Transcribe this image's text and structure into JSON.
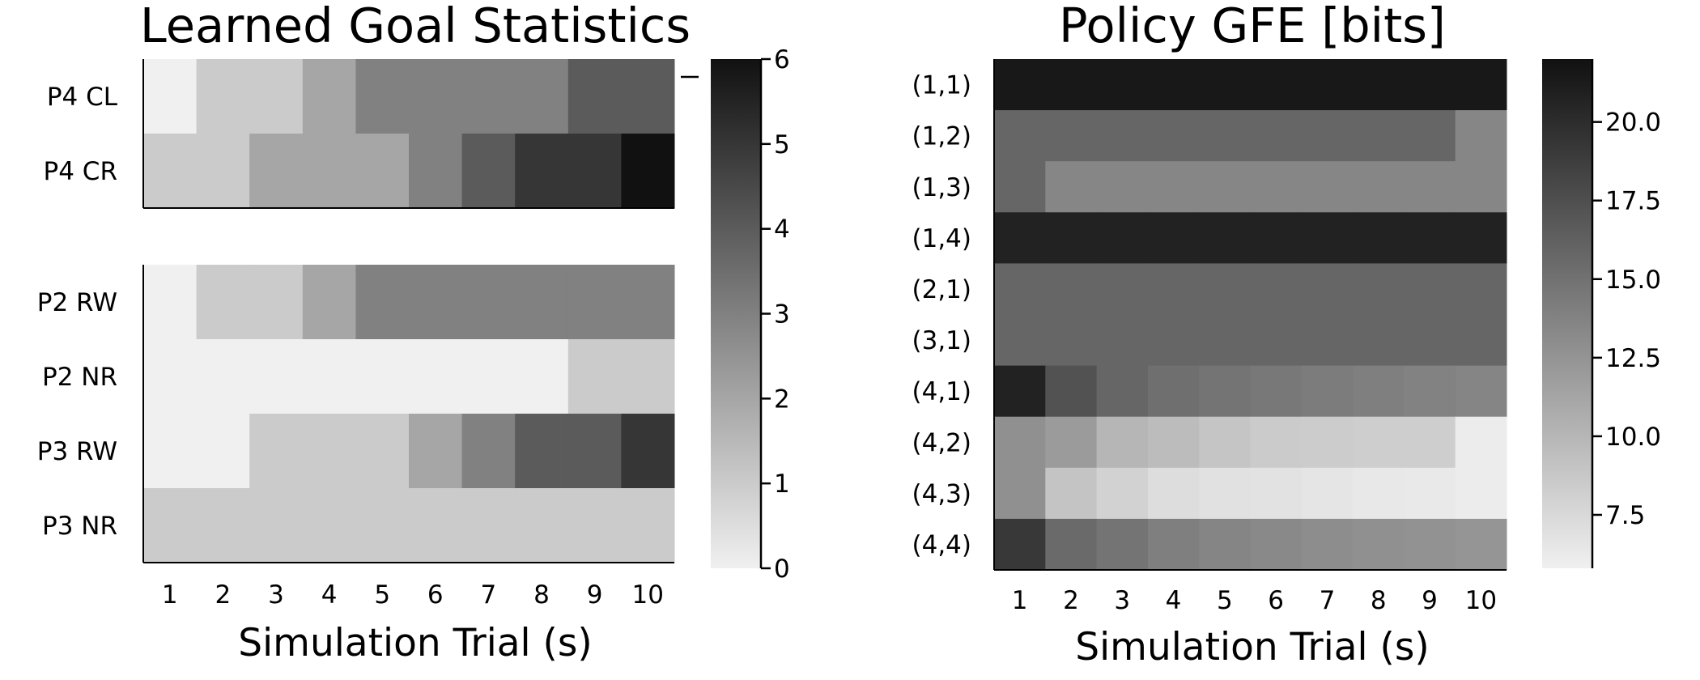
{
  "chart_data": [
    {
      "type": "heatmap",
      "title": "Learned Goal Statistics",
      "xlabel": "Simulation Trial (s)",
      "ylabel": "",
      "colormap": [
        "#f0f0f0",
        "#111111"
      ],
      "colorbar": {
        "range": [
          0,
          6
        ],
        "ticks": [
          "0",
          "1",
          "2",
          "3",
          "4",
          "5",
          "6"
        ]
      },
      "x": [
        "1",
        "2",
        "3",
        "4",
        "5",
        "6",
        "7",
        "8",
        "9",
        "10"
      ],
      "panels": [
        {
          "rows": [
            "P4 CL",
            "P4 CR"
          ],
          "values": [
            [
              0,
              1,
              1,
              2,
              3,
              3,
              3,
              3,
              4,
              4
            ],
            [
              1,
              1,
              2,
              2,
              2,
              3,
              4,
              5,
              5,
              6
            ]
          ]
        },
        {
          "rows": [
            "P2 RW",
            "P2 NR",
            "P3 RW",
            "P3 NR"
          ],
          "values": [
            [
              0,
              1,
              1,
              2,
              3,
              3,
              3,
              3,
              3,
              3
            ],
            [
              0,
              0,
              0,
              0,
              0,
              0,
              0,
              0,
              1,
              1
            ],
            [
              0,
              0,
              1,
              1,
              1,
              2,
              3,
              4,
              4,
              5
            ],
            [
              1,
              1,
              1,
              1,
              1,
              1,
              1,
              1,
              1,
              1
            ]
          ]
        }
      ]
    },
    {
      "type": "heatmap",
      "title": "Policy GFE [bits]",
      "xlabel": "Simulation Trial (s)",
      "ylabel": "",
      "colormap": [
        "#f0f0f0",
        "#111111"
      ],
      "colorbar": {
        "range": [
          5.8,
          22
        ],
        "ticks": [
          "7.5",
          "10.0",
          "12.5",
          "15.0",
          "17.5",
          "20.0"
        ]
      },
      "x": [
        "1",
        "2",
        "3",
        "4",
        "5",
        "6",
        "7",
        "8",
        "9",
        "10"
      ],
      "rows": [
        "(1,1)",
        "(1,2)",
        "(1,3)",
        "(1,4)",
        "(2,1)",
        "(3,1)",
        "(4,1)",
        "(4,2)",
        "(4,3)",
        "(4,4)"
      ],
      "values": [
        [
          21.5,
          21.5,
          21.5,
          21.5,
          21.5,
          21.5,
          21.5,
          21.5,
          21.5,
          21.5
        ],
        [
          15.8,
          15.8,
          15.8,
          15.8,
          15.8,
          15.8,
          15.8,
          15.8,
          15.8,
          13.5
        ],
        [
          15.8,
          13.5,
          13.5,
          13.5,
          13.5,
          13.5,
          13.5,
          13.5,
          13.5,
          13.5
        ],
        [
          20.8,
          20.8,
          20.8,
          20.8,
          20.8,
          20.8,
          20.8,
          20.8,
          20.8,
          20.8
        ],
        [
          15.8,
          15.8,
          15.8,
          15.8,
          15.8,
          15.8,
          15.8,
          15.8,
          15.8,
          15.8
        ],
        [
          15.8,
          15.8,
          15.8,
          15.8,
          15.8,
          15.8,
          15.8,
          15.8,
          15.8,
          15.8
        ],
        [
          20.8,
          17.3,
          15.8,
          15.2,
          14.8,
          14.5,
          14.2,
          14.0,
          13.8,
          13.6
        ],
        [
          12.8,
          12.0,
          10.0,
          9.6,
          8.9,
          8.5,
          8.4,
          8.3,
          8.3,
          6.1
        ],
        [
          12.8,
          9.0,
          8.0,
          7.2,
          6.9,
          6.8,
          6.6,
          6.4,
          6.3,
          6.1
        ],
        [
          19.2,
          15.5,
          14.8,
          14.0,
          13.6,
          13.3,
          13.0,
          12.8,
          12.6,
          12.4
        ]
      ]
    }
  ]
}
